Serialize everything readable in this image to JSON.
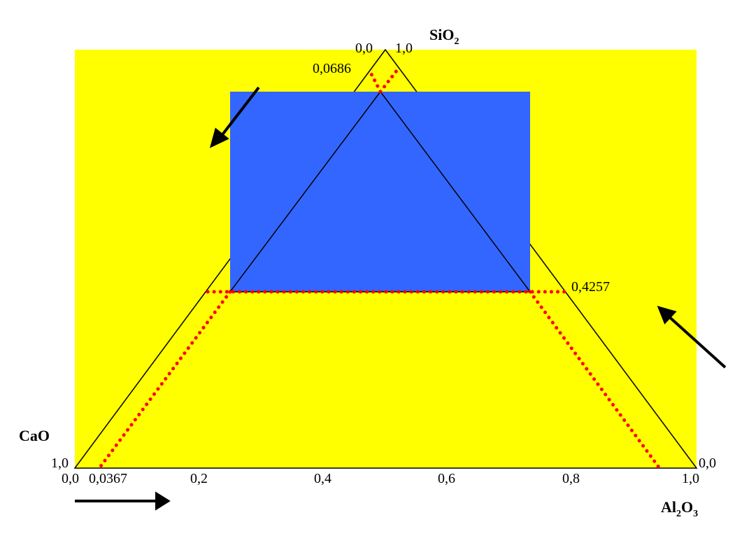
{
  "diagram": {
    "colors": {
      "background_panel": "#FFFF00",
      "highlight_region": "#3366FF",
      "triangle_edges": "#000000",
      "dotted_guides": "#FF0000",
      "arrows": "#000000"
    },
    "components": {
      "top": {
        "label_main": "SiO",
        "label_sub": "2"
      },
      "left": {
        "label": "CaO"
      },
      "right": {
        "label_main": "Al",
        "label_sub1": "2",
        "label_main2": "O",
        "label_sub2": "3"
      }
    },
    "vertex_values": {
      "top_left": "0,0",
      "top_right": "1,0",
      "left": "1,0",
      "right": "0,0"
    },
    "bottom_axis_ticks": [
      "0,0",
      "0,0367",
      "0,2",
      "0,4",
      "0,6",
      "0,8",
      "1,0"
    ],
    "guide_values": {
      "bottom": "0,0367",
      "top": "0,0686",
      "right": "0,4257"
    }
  }
}
